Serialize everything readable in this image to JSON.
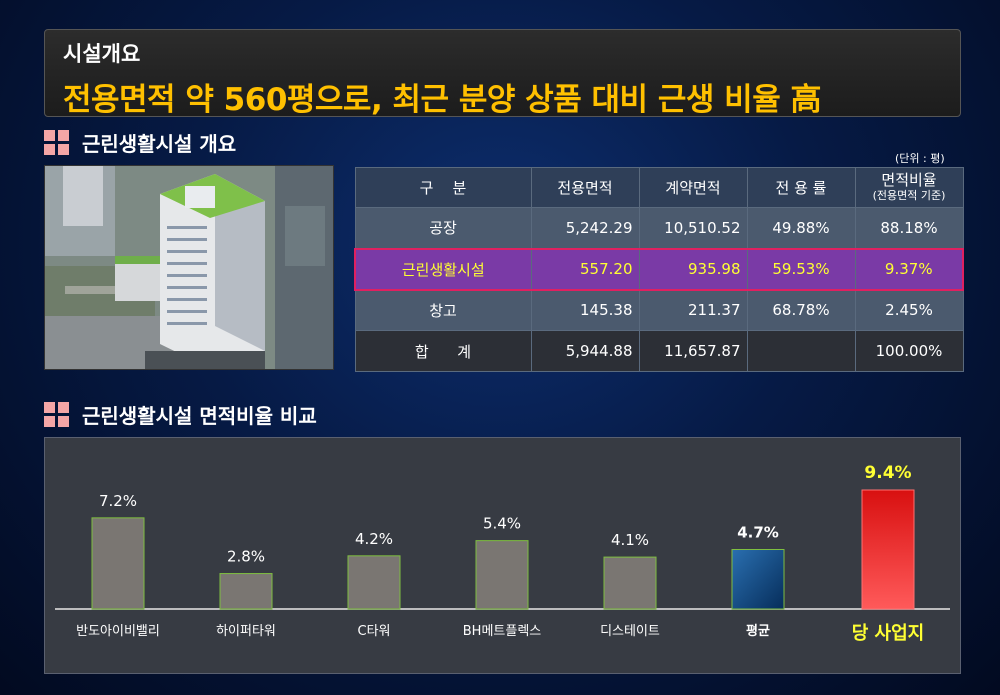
{
  "header": {
    "subtitle": "시설개요",
    "title": "전용면적 약 560평으로, 최근 분양 상품 대비 근생 비율 高"
  },
  "section1": {
    "title": "근린생활시설 개요",
    "unit": "(단위 : 평)"
  },
  "table": {
    "headers": [
      "구    분",
      "전용면적",
      "계약면적",
      "전 용 률",
      "면적비율",
      "(전용면적 기준)"
    ],
    "rows": [
      {
        "label": "공장",
        "exclusive": "5,242.29",
        "contract": "10,510.52",
        "ratio": "49.88%",
        "share": "88.18%"
      },
      {
        "label": "근린생활시설",
        "exclusive": "557.20",
        "contract": "935.98",
        "ratio": "59.53%",
        "share": "9.37%"
      },
      {
        "label": "창고",
        "exclusive": "145.38",
        "contract": "211.37",
        "ratio": "68.78%",
        "share": "2.45%"
      },
      {
        "label": "합      계",
        "exclusive": "5,944.88",
        "contract": "11,657.87",
        "ratio": "",
        "share": "100.00%"
      }
    ]
  },
  "section2": {
    "title": "근린생활시설 면적비율 비교"
  },
  "chart_data": {
    "type": "bar",
    "categories": [
      "반도아이비밸리",
      "하이퍼타워",
      "C타워",
      "BH메트플렉스",
      "디스테이트",
      "평균",
      "당 사업지"
    ],
    "values": [
      7.2,
      2.8,
      4.2,
      5.4,
      4.1,
      4.7,
      9.4
    ],
    "value_labels": [
      "7.2%",
      "2.8%",
      "4.2%",
      "5.4%",
      "4.1%",
      "4.7%",
      "9.4%"
    ],
    "ylim": [
      0,
      10
    ],
    "colors": {
      "default": "#7a7672",
      "average": "#0d4f8c",
      "target": "#ee2020",
      "default_border": "#7fbf40"
    }
  }
}
